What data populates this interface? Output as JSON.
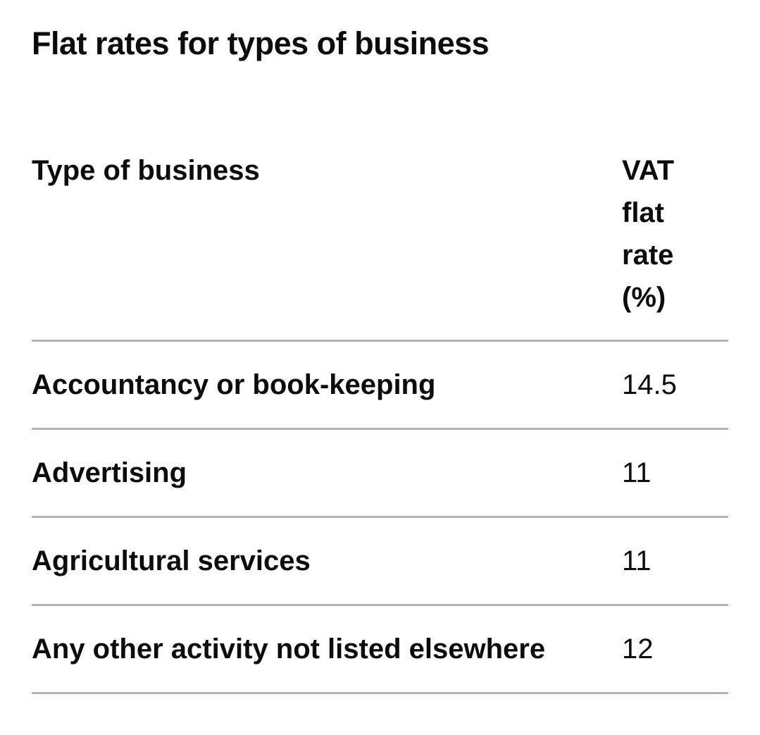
{
  "title": "Flat rates for types of business",
  "table": {
    "headers": {
      "business": "Type of business",
      "rate": "VAT flat rate (%)"
    },
    "rows": [
      {
        "business": "Accountancy or book-keeping",
        "rate": "14.5"
      },
      {
        "business": "Advertising",
        "rate": "11"
      },
      {
        "business": "Agricultural services",
        "rate": "11"
      },
      {
        "business": "Any other activity not listed elsewhere",
        "rate": "12"
      }
    ]
  }
}
